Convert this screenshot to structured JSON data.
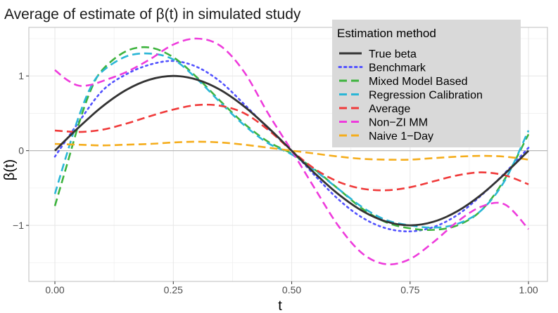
{
  "chart_data": {
    "type": "line",
    "title": "Average of estimate of β(t) in simulated study",
    "xlabel": "t",
    "ylabel": "β(t)",
    "xlim": [
      -0.055,
      1.04
    ],
    "ylim": [
      -1.75,
      1.65
    ],
    "x_ticks": [
      {
        "value": 0.0,
        "label": "0.00"
      },
      {
        "value": 0.25,
        "label": "0.25"
      },
      {
        "value": 0.5,
        "label": "0.50"
      },
      {
        "value": 0.75,
        "label": "0.75"
      },
      {
        "value": 1.0,
        "label": "1.00"
      }
    ],
    "y_ticks": [
      {
        "value": -1,
        "label": "−1"
      },
      {
        "value": 0,
        "label": "0"
      },
      {
        "value": 1,
        "label": "1"
      }
    ],
    "grid": true,
    "reference_line_y": 0,
    "legend": {
      "title": "Estimation method",
      "position": "top-right"
    },
    "series": [
      {
        "name": "True beta",
        "color": "#333333",
        "dash": "solid",
        "x": [
          0.0,
          0.05,
          0.1,
          0.15,
          0.2,
          0.25,
          0.3,
          0.35,
          0.4,
          0.45,
          0.5,
          0.55,
          0.6,
          0.65,
          0.7,
          0.75,
          0.8,
          0.85,
          0.9,
          0.95,
          1.0
        ],
        "y": [
          0.0,
          0.31,
          0.59,
          0.81,
          0.95,
          1.0,
          0.95,
          0.81,
          0.59,
          0.31,
          0.0,
          -0.31,
          -0.59,
          -0.81,
          -0.95,
          -1.0,
          -0.95,
          -0.81,
          -0.59,
          -0.31,
          0.0
        ]
      },
      {
        "name": "Benchmark",
        "color": "#5151ff",
        "dash": "dotted",
        "x": [
          0.0,
          0.05,
          0.1,
          0.15,
          0.2,
          0.25,
          0.3,
          0.35,
          0.4,
          0.45,
          0.5,
          0.55,
          0.6,
          0.65,
          0.7,
          0.75,
          0.8,
          0.85,
          0.9,
          0.95,
          1.0
        ],
        "y": [
          -0.08,
          0.38,
          0.8,
          1.02,
          1.15,
          1.2,
          1.12,
          0.92,
          0.62,
          0.3,
          0.0,
          -0.34,
          -0.66,
          -0.9,
          -1.04,
          -1.08,
          -1.02,
          -0.86,
          -0.6,
          -0.3,
          0.04
        ]
      },
      {
        "name": "Mixed Model Based",
        "color": "#3db33d",
        "dash": "dashed",
        "x": [
          0.0,
          0.025,
          0.05,
          0.075,
          0.1,
          0.15,
          0.2,
          0.25,
          0.3,
          0.35,
          0.4,
          0.45,
          0.5,
          0.55,
          0.6,
          0.65,
          0.7,
          0.75,
          0.8,
          0.85,
          0.9,
          0.95,
          1.0
        ],
        "y": [
          -0.74,
          -0.2,
          0.35,
          0.8,
          1.08,
          1.33,
          1.38,
          1.25,
          0.98,
          0.66,
          0.36,
          0.12,
          -0.04,
          -0.26,
          -0.52,
          -0.78,
          -0.96,
          -1.04,
          -1.06,
          -1.0,
          -0.8,
          -0.38,
          0.22
        ]
      },
      {
        "name": "Regression Calibration",
        "color": "#2ab6d6",
        "dash": "dashed",
        "x": [
          0.0,
          0.025,
          0.05,
          0.075,
          0.1,
          0.15,
          0.2,
          0.25,
          0.3,
          0.35,
          0.4,
          0.45,
          0.5,
          0.55,
          0.6,
          0.65,
          0.7,
          0.75,
          0.8,
          0.85,
          0.9,
          0.95,
          1.0
        ],
        "y": [
          -0.58,
          -0.05,
          0.45,
          0.84,
          1.06,
          1.26,
          1.3,
          1.22,
          0.96,
          0.64,
          0.34,
          0.1,
          -0.05,
          -0.27,
          -0.52,
          -0.76,
          -0.93,
          -1.0,
          -1.03,
          -0.98,
          -0.8,
          -0.4,
          0.27
        ]
      },
      {
        "name": "Average",
        "color": "#f03a3a",
        "dash": "dashed",
        "x": [
          0.0,
          0.05,
          0.1,
          0.15,
          0.2,
          0.25,
          0.3,
          0.35,
          0.4,
          0.45,
          0.5,
          0.55,
          0.6,
          0.65,
          0.7,
          0.75,
          0.8,
          0.85,
          0.9,
          0.95,
          1.0
        ],
        "y": [
          0.27,
          0.25,
          0.28,
          0.36,
          0.46,
          0.55,
          0.61,
          0.6,
          0.5,
          0.28,
          0.0,
          -0.25,
          -0.42,
          -0.51,
          -0.53,
          -0.49,
          -0.41,
          -0.33,
          -0.29,
          -0.33,
          -0.45
        ]
      },
      {
        "name": "Non-ZI MM",
        "color": "#ee3bdc",
        "dash": "dashed",
        "x": [
          0.0,
          0.025,
          0.05,
          0.075,
          0.1,
          0.15,
          0.2,
          0.25,
          0.3,
          0.35,
          0.4,
          0.45,
          0.5,
          0.55,
          0.6,
          0.65,
          0.7,
          0.75,
          0.8,
          0.85,
          0.9,
          0.95,
          1.0
        ],
        "y": [
          1.08,
          0.95,
          0.87,
          0.88,
          0.93,
          1.05,
          1.22,
          1.42,
          1.5,
          1.4,
          1.05,
          0.5,
          0.0,
          -0.52,
          -1.02,
          -1.38,
          -1.52,
          -1.45,
          -1.22,
          -0.95,
          -0.75,
          -0.72,
          -1.05
        ]
      },
      {
        "name": "Naive 1-Day",
        "color": "#f5ad1c",
        "dash": "dashed",
        "x": [
          0.0,
          0.05,
          0.1,
          0.15,
          0.2,
          0.25,
          0.3,
          0.35,
          0.4,
          0.45,
          0.5,
          0.55,
          0.6,
          0.65,
          0.7,
          0.75,
          0.8,
          0.85,
          0.9,
          0.95,
          1.0
        ],
        "y": [
          0.09,
          0.08,
          0.07,
          0.08,
          0.09,
          0.11,
          0.12,
          0.11,
          0.08,
          0.04,
          0.0,
          -0.04,
          -0.08,
          -0.11,
          -0.12,
          -0.12,
          -0.1,
          -0.08,
          -0.07,
          -0.08,
          -0.12
        ]
      }
    ]
  }
}
